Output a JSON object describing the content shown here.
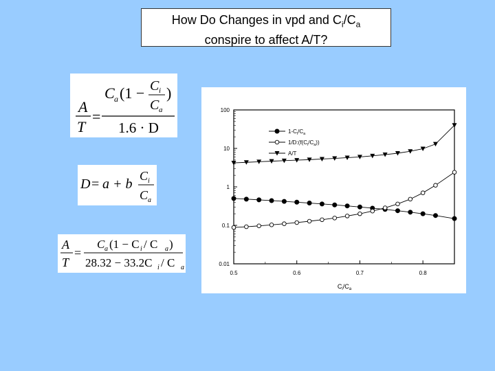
{
  "slide": {
    "title_line1_pre": "How Do Changes in vpd and C",
    "title_line1_sub1": "i",
    "title_line1_mid": "/C",
    "title_line1_sub2": "a",
    "title_line2": "conspire to affect A/T?"
  },
  "equations": {
    "eq1": {
      "lhs_num": "A",
      "lhs_den": "T",
      "equals": "=",
      "num_ca": "C",
      "num_ca_sub": "a",
      "num_paren_open": "(1 −",
      "frac_num": "C",
      "frac_num_sub": "i",
      "frac_den": "C",
      "frac_den_sub": "a",
      "num_paren_close": ")",
      "den": "1.6 · D"
    },
    "eq2": {
      "lhs": "D",
      "equals": "=",
      "rhs": "a + b",
      "frac_num": "C",
      "frac_num_sub": "i",
      "frac_den": "C",
      "frac_den_sub": "a"
    },
    "eq3": {
      "lhs_num": "A",
      "lhs_den": "T",
      "equals": "=",
      "num": "C",
      "num_sub": "a",
      "num_rest": "(1 − C",
      "num_sub2": "i",
      "num_rest2": " / C",
      "num_sub3": "a",
      "num_close": ")",
      "den": "28.32 − 33.2C",
      "den_sub": "i",
      "den_rest": " / C",
      "den_sub2": "a"
    }
  },
  "chart_data": {
    "type": "line",
    "xlabel": "Ci/Ca",
    "xlabel_main": "C",
    "xlabel_sub1": "i",
    "xlabel_sep": "/C",
    "xlabel_sub2": "a",
    "ylabel": "",
    "y_scale": "log",
    "xlim": [
      0.5,
      0.85
    ],
    "ylim": [
      0.01,
      100
    ],
    "x_ticks": [
      0.5,
      0.6,
      0.7,
      0.8
    ],
    "x_tick_labels": [
      "0.5",
      "0.6",
      "0.7",
      "0.8"
    ],
    "y_ticks": [
      0.01,
      0.1,
      1,
      10,
      100
    ],
    "y_tick_labels": [
      "0.01",
      "0.1",
      "1",
      "10",
      "100"
    ],
    "grid": false,
    "legend_position": "top-left",
    "x": [
      0.5,
      0.52,
      0.54,
      0.56,
      0.58,
      0.6,
      0.62,
      0.64,
      0.66,
      0.68,
      0.7,
      0.72,
      0.74,
      0.76,
      0.78,
      0.8,
      0.82,
      0.85
    ],
    "series": [
      {
        "name": "1-Ci/Ca",
        "legend_parts": [
          "1-C",
          "i",
          "/C",
          "a"
        ],
        "marker": "filled-circle",
        "values": [
          0.5,
          0.48,
          0.46,
          0.44,
          0.42,
          0.4,
          0.38,
          0.36,
          0.34,
          0.32,
          0.3,
          0.28,
          0.26,
          0.24,
          0.22,
          0.2,
          0.18,
          0.15
        ]
      },
      {
        "name": "1/D:(f(Ci/Ca))",
        "legend_parts": [
          "1/D:(f(C",
          "i",
          "/C",
          "a",
          "))"
        ],
        "marker": "open-circle",
        "values": [
          0.088,
          0.092,
          0.097,
          0.103,
          0.11,
          0.118,
          0.128,
          0.14,
          0.155,
          0.175,
          0.2,
          0.235,
          0.285,
          0.36,
          0.48,
          0.7,
          1.1,
          2.4
        ]
      },
      {
        "name": "A/T",
        "legend_parts": [
          "A/T"
        ],
        "marker": "filled-triangle-down",
        "values": [
          4.2,
          4.35,
          4.5,
          4.65,
          4.8,
          4.95,
          5.1,
          5.3,
          5.5,
          5.75,
          6.0,
          6.4,
          6.9,
          7.5,
          8.4,
          9.8,
          13.0,
          40.0
        ]
      }
    ]
  }
}
